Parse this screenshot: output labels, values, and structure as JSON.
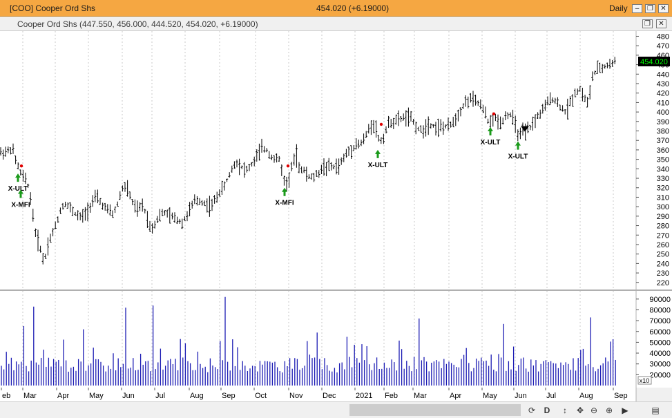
{
  "window": {
    "title": "[COO] Cooper Ord Shs",
    "last_change": "454.020 (+6.19000)",
    "period": "Daily"
  },
  "legend": {
    "text": "Cooper Ord Shs (447.550, 456.000, 444.520, 454.020, +6.19000)"
  },
  "toolbar": {
    "d_label": "D"
  },
  "colors": {
    "title_bar": "#f5a742",
    "price_bars": "#000000",
    "volume_bars": "#1c1cb4",
    "signal_arrow": "#1a9a1a",
    "signal_dot": "#e00000",
    "last_price_box": "#000000",
    "last_price_text": "#00ff00"
  },
  "chart_data": [
    {
      "type": "ohlc",
      "title": "",
      "price_axis": {
        "ticks": [
          480,
          470,
          460,
          450,
          440,
          430,
          420,
          410,
          400,
          390,
          380,
          370,
          360,
          350,
          340,
          330,
          320,
          310,
          300,
          290,
          280,
          270,
          260,
          250,
          240,
          230,
          220
        ],
        "range": [
          214,
          484
        ]
      },
      "last_price_label": "454.020",
      "x_axis": {
        "labels": [
          "eb",
          "Mar",
          "Apr",
          "May",
          "Jun",
          "Jul",
          "Aug",
          "Sep",
          "Oct",
          "Nov",
          "Dec",
          "2021",
          "Feb",
          "Mar",
          "Apr",
          "May",
          "Jun",
          "Jul",
          "Aug",
          "Sep"
        ]
      },
      "price_path": [
        [
          0,
          357
        ],
        [
          10,
          358
        ],
        [
          18,
          362
        ],
        [
          22,
          350
        ],
        [
          26,
          343
        ],
        [
          30,
          335
        ],
        [
          35,
          330
        ],
        [
          40,
          325
        ],
        [
          44,
          310
        ],
        [
          48,
          290
        ],
        [
          52,
          270
        ],
        [
          58,
          258
        ],
        [
          62,
          245
        ],
        [
          66,
          248
        ],
        [
          70,
          262
        ],
        [
          76,
          272
        ],
        [
          82,
          282
        ],
        [
          88,
          298
        ],
        [
          95,
          304
        ],
        [
          102,
          298
        ],
        [
          110,
          292
        ],
        [
          118,
          288
        ],
        [
          126,
          295
        ],
        [
          134,
          306
        ],
        [
          140,
          310
        ],
        [
          148,
          302
        ],
        [
          156,
          296
        ],
        [
          164,
          292
        ],
        [
          170,
          302
        ],
        [
          176,
          318
        ],
        [
          182,
          322
        ],
        [
          188,
          312
        ],
        [
          194,
          300
        ],
        [
          200,
          296
        ],
        [
          206,
          302
        ],
        [
          212,
          292
        ],
        [
          218,
          276
        ],
        [
          224,
          282
        ],
        [
          230,
          290
        ],
        [
          238,
          294
        ],
        [
          246,
          290
        ],
        [
          252,
          288
        ],
        [
          258,
          286
        ],
        [
          264,
          283
        ],
        [
          270,
          290
        ],
        [
          276,
          298
        ],
        [
          282,
          306
        ],
        [
          290,
          306
        ],
        [
          298,
          303
        ],
        [
          306,
          300
        ],
        [
          312,
          308
        ],
        [
          318,
          316
        ],
        [
          324,
          320
        ],
        [
          330,
          330
        ],
        [
          336,
          340
        ],
        [
          342,
          348
        ],
        [
          350,
          342
        ],
        [
          356,
          338
        ],
        [
          362,
          342
        ],
        [
          368,
          348
        ],
        [
          374,
          356
        ],
        [
          380,
          362
        ],
        [
          386,
          360
        ],
        [
          392,
          354
        ],
        [
          398,
          350
        ],
        [
          404,
          350
        ],
        [
          408,
          340
        ],
        [
          412,
          325
        ],
        [
          416,
          326
        ],
        [
          420,
          336
        ],
        [
          424,
          346
        ],
        [
          428,
          348
        ],
        [
          432,
          342
        ],
        [
          438,
          340
        ],
        [
          444,
          334
        ],
        [
          450,
          330
        ],
        [
          456,
          332
        ],
        [
          462,
          336
        ],
        [
          468,
          342
        ],
        [
          474,
          342
        ],
        [
          480,
          342
        ],
        [
          486,
          342
        ],
        [
          492,
          344
        ],
        [
          498,
          352
        ],
        [
          504,
          358
        ],
        [
          510,
          362
        ],
        [
          516,
          366
        ],
        [
          522,
          366
        ],
        [
          528,
          372
        ],
        [
          532,
          378
        ],
        [
          536,
          385
        ],
        [
          540,
          388
        ],
        [
          544,
          384
        ],
        [
          548,
          372
        ],
        [
          552,
          370
        ],
        [
          556,
          374
        ],
        [
          560,
          384
        ],
        [
          566,
          390
        ],
        [
          572,
          390
        ],
        [
          578,
          392
        ],
        [
          584,
          394
        ],
        [
          590,
          395
        ],
        [
          596,
          392
        ],
        [
          602,
          386
        ],
        [
          608,
          380
        ],
        [
          614,
          382
        ],
        [
          620,
          388
        ],
        [
          626,
          386
        ],
        [
          632,
          384
        ],
        [
          638,
          384
        ],
        [
          644,
          384
        ],
        [
          650,
          384
        ],
        [
          656,
          390
        ],
        [
          662,
          396
        ],
        [
          668,
          404
        ],
        [
          674,
          410
        ],
        [
          680,
          414
        ],
        [
          686,
          412
        ],
        [
          692,
          410
        ],
        [
          698,
          404
        ],
        [
          704,
          396
        ],
        [
          708,
          388
        ],
        [
          712,
          390
        ],
        [
          716,
          394
        ],
        [
          720,
          392
        ],
        [
          724,
          388
        ],
        [
          728,
          392
        ],
        [
          732,
          396
        ],
        [
          738,
          398
        ],
        [
          742,
          394
        ],
        [
          746,
          386
        ],
        [
          750,
          378
        ],
        [
          754,
          375
        ],
        [
          758,
          380
        ],
        [
          762,
          380
        ],
        [
          766,
          382
        ],
        [
          772,
          388
        ],
        [
          778,
          395
        ],
        [
          784,
          400
        ],
        [
          790,
          406
        ],
        [
          796,
          414
        ],
        [
          802,
          414
        ],
        [
          808,
          408
        ],
        [
          814,
          404
        ],
        [
          818,
          400
        ],
        [
          822,
          404
        ],
        [
          828,
          414
        ],
        [
          834,
          422
        ],
        [
          840,
          424
        ],
        [
          846,
          416
        ],
        [
          850,
          408
        ],
        [
          854,
          420
        ],
        [
          858,
          438
        ],
        [
          864,
          444
        ],
        [
          870,
          446
        ],
        [
          876,
          448
        ],
        [
          882,
          450
        ],
        [
          888,
          452
        ],
        [
          893,
          454
        ]
      ],
      "price_spikes": [
        [
          430,
          366
        ],
        [
          418,
          320
        ],
        [
          760,
          370
        ]
      ],
      "signals": [
        {
          "label": "X-ULT",
          "x": 26,
          "price": 335,
          "dot_price": 343
        },
        {
          "label": "X-MFI",
          "x": 30,
          "price": 318,
          "dot_price": null
        },
        {
          "label": "X-MFI",
          "x": 412,
          "price": 320,
          "dot_price": 343
        },
        {
          "label": "X-ULT",
          "x": 547,
          "price": 360,
          "dot_price": 387
        },
        {
          "label": "X-ULT",
          "x": 710,
          "price": 384,
          "dot_price": 398
        },
        {
          "label": "X-ULT",
          "x": 750,
          "price": 369,
          "dot_price": null
        }
      ],
      "marker_down": {
        "x": 760,
        "price": 385
      }
    },
    {
      "type": "bar",
      "title": "",
      "volume_axis": {
        "labels": [
          "90000",
          "80000",
          "70000",
          "60000",
          "50000",
          "40000",
          "30000",
          "20000"
        ],
        "values": [
          90000,
          80000,
          70000,
          60000,
          50000,
          40000,
          30000,
          20000
        ],
        "multiplier_label": "x10",
        "range": [
          10000,
          95000
        ]
      },
      "volume_baseline": 22000,
      "volume_spikes": [
        [
          50,
          83000
        ],
        [
          183,
          82000
        ],
        [
          222,
          84000
        ],
        [
          327,
          92000
        ],
        [
          606,
          72000
        ],
        [
          729,
          67000
        ],
        [
          855,
          73000
        ],
        [
          460,
          59000
        ],
        [
          120,
          62000
        ],
        [
          35,
          65000
        ]
      ]
    }
  ]
}
